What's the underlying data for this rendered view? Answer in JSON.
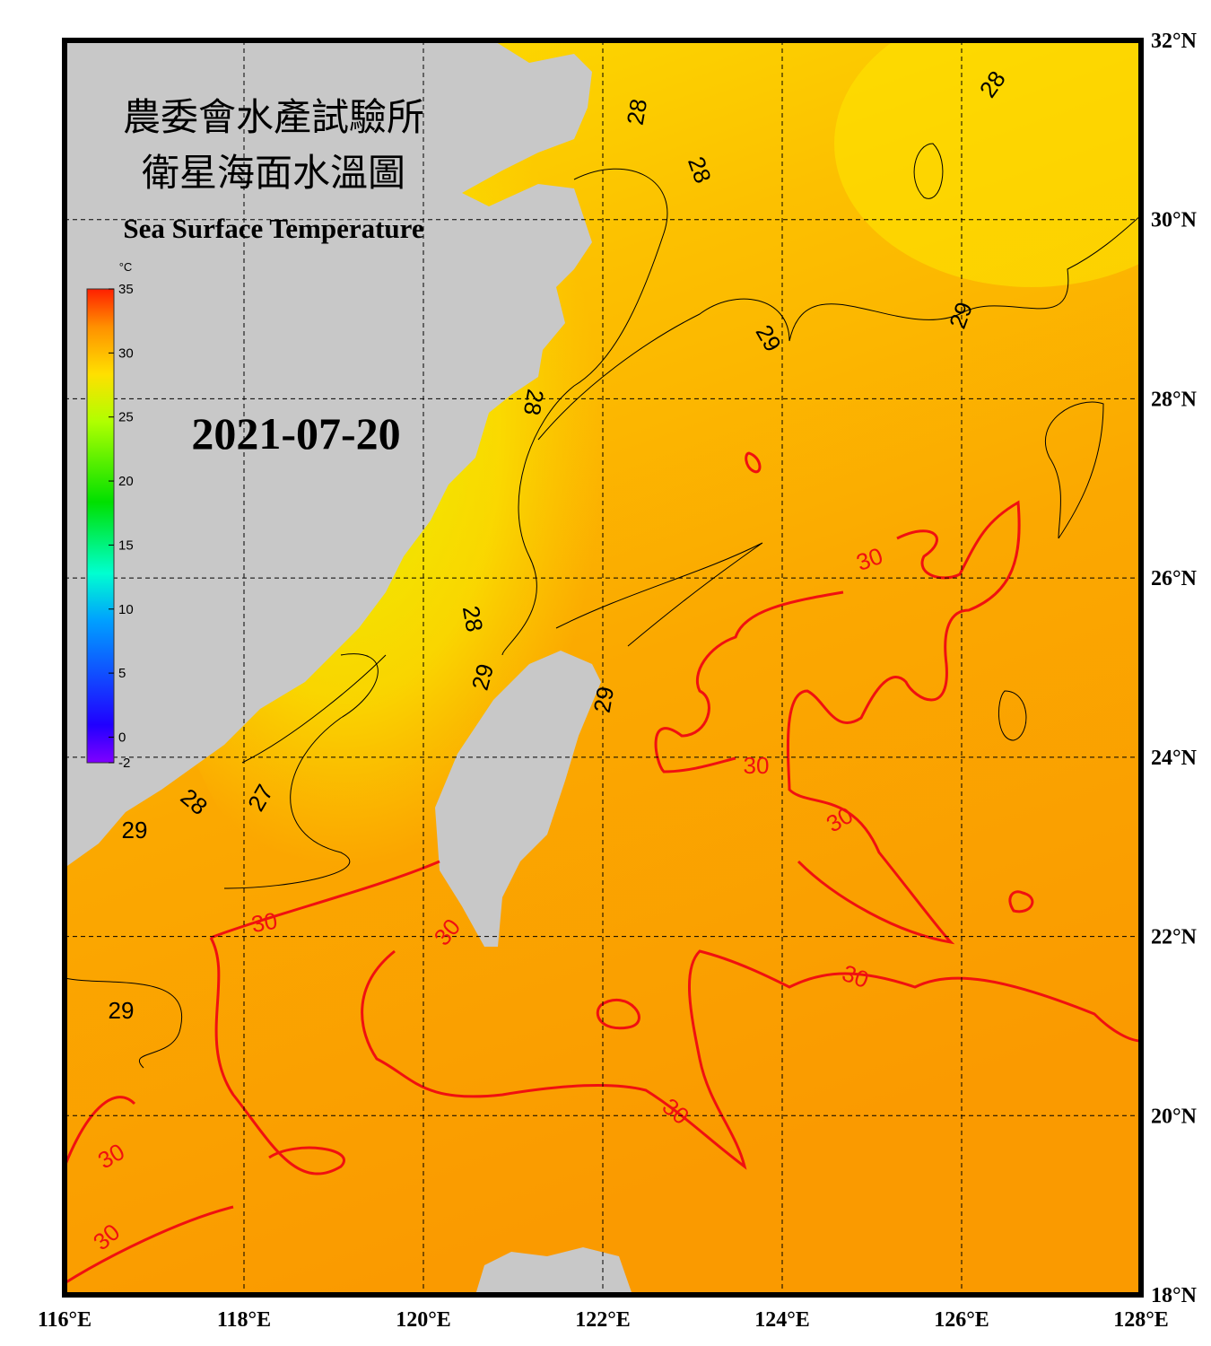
{
  "header": {
    "title_zh_1": "農委會水產試驗所",
    "title_zh_2": "衛星海面水溫圖",
    "title_en": "Sea Surface Temperature",
    "date": "2021-07-20"
  },
  "colorbar": {
    "unit": "°C",
    "min": -2,
    "max": 35,
    "ticks": [
      35,
      30,
      25,
      20,
      15,
      10,
      5,
      0,
      -2
    ]
  },
  "map": {
    "lon_range": [
      116,
      128
    ],
    "lat_range": [
      18,
      32
    ],
    "lon_ticks": [
      {
        "value": 116,
        "label": "116°E"
      },
      {
        "value": 118,
        "label": "118°E"
      },
      {
        "value": 120,
        "label": "120°E"
      },
      {
        "value": 122,
        "label": "122°E"
      },
      {
        "value": 124,
        "label": "124°E"
      },
      {
        "value": 126,
        "label": "126°E"
      },
      {
        "value": 128,
        "label": "128°E"
      }
    ],
    "lat_ticks": [
      {
        "value": 32,
        "label": "32°N"
      },
      {
        "value": 30,
        "label": "30°N"
      },
      {
        "value": 28,
        "label": "28°N"
      },
      {
        "value": 26,
        "label": "26°N"
      },
      {
        "value": 24,
        "label": "24°N"
      },
      {
        "value": 22,
        "label": "22°N"
      },
      {
        "value": 20,
        "label": "20°N"
      },
      {
        "value": 18,
        "label": "18°N"
      }
    ],
    "contour_labels": [
      28,
      28,
      28,
      29,
      29,
      28,
      28,
      29,
      29,
      27,
      28,
      29,
      29,
      30,
      30,
      30,
      30,
      30,
      30,
      30,
      30,
      30
    ]
  }
}
